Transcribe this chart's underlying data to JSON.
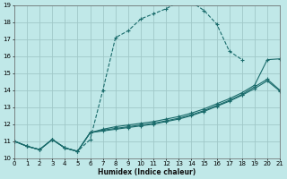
{
  "xlabel": "Humidex (Indice chaleur)",
  "bg_color": "#c0e8e8",
  "grid_color": "#a0c8c8",
  "line_color": "#1a6b6b",
  "xlim": [
    0,
    21
  ],
  "ylim": [
    10,
    19
  ],
  "xticks": [
    0,
    1,
    2,
    3,
    4,
    5,
    6,
    7,
    8,
    9,
    10,
    11,
    12,
    13,
    14,
    15,
    16,
    17,
    18,
    19,
    20,
    21
  ],
  "yticks": [
    10,
    11,
    12,
    13,
    14,
    15,
    16,
    17,
    18,
    19
  ],
  "series": [
    {
      "x": [
        0,
        1,
        2,
        3,
        4,
        5,
        6,
        7,
        8,
        9,
        10,
        11,
        12,
        13,
        14,
        15,
        16,
        17,
        18
      ],
      "y": [
        11,
        10.7,
        10.5,
        11.1,
        10.6,
        10.4,
        11.1,
        14.0,
        17.1,
        17.5,
        18.2,
        18.5,
        18.8,
        19.2,
        19.2,
        18.7,
        17.9,
        16.3,
        15.8
      ],
      "style": "--",
      "marker": "+"
    },
    {
      "x": [
        0,
        1,
        2,
        3,
        4,
        5,
        6,
        7,
        8,
        9,
        10,
        11,
        12,
        13,
        14,
        15,
        16,
        17,
        18,
        19,
        20,
        21
      ],
      "y": [
        11,
        10.7,
        10.5,
        11.1,
        10.6,
        10.4,
        11.5,
        11.7,
        11.85,
        11.95,
        12.05,
        12.15,
        12.3,
        12.45,
        12.65,
        12.9,
        13.2,
        13.5,
        13.85,
        14.3,
        15.8,
        15.85
      ],
      "style": "-",
      "marker": "+"
    },
    {
      "x": [
        0,
        1,
        2,
        3,
        4,
        5,
        6,
        7,
        8,
        9,
        10,
        11,
        12,
        13,
        14,
        15,
        16,
        17,
        18,
        19,
        20,
        21
      ],
      "y": [
        11,
        10.7,
        10.5,
        11.1,
        10.6,
        10.4,
        11.5,
        11.65,
        11.75,
        11.85,
        11.95,
        12.05,
        12.2,
        12.35,
        12.55,
        12.8,
        13.1,
        13.4,
        13.75,
        14.2,
        14.65,
        14.0
      ],
      "style": "-",
      "marker": "+"
    },
    {
      "x": [
        0,
        1,
        2,
        3,
        4,
        5,
        6,
        7,
        8,
        9,
        10,
        11,
        12,
        13,
        14,
        15,
        16,
        17,
        18,
        19,
        20,
        21
      ],
      "y": [
        11,
        10.7,
        10.5,
        11.1,
        10.6,
        10.4,
        11.5,
        11.6,
        11.7,
        11.8,
        11.9,
        12.0,
        12.15,
        12.3,
        12.5,
        12.75,
        13.05,
        13.35,
        13.7,
        14.1,
        14.55,
        13.95
      ],
      "style": "-",
      "marker": "+"
    }
  ]
}
